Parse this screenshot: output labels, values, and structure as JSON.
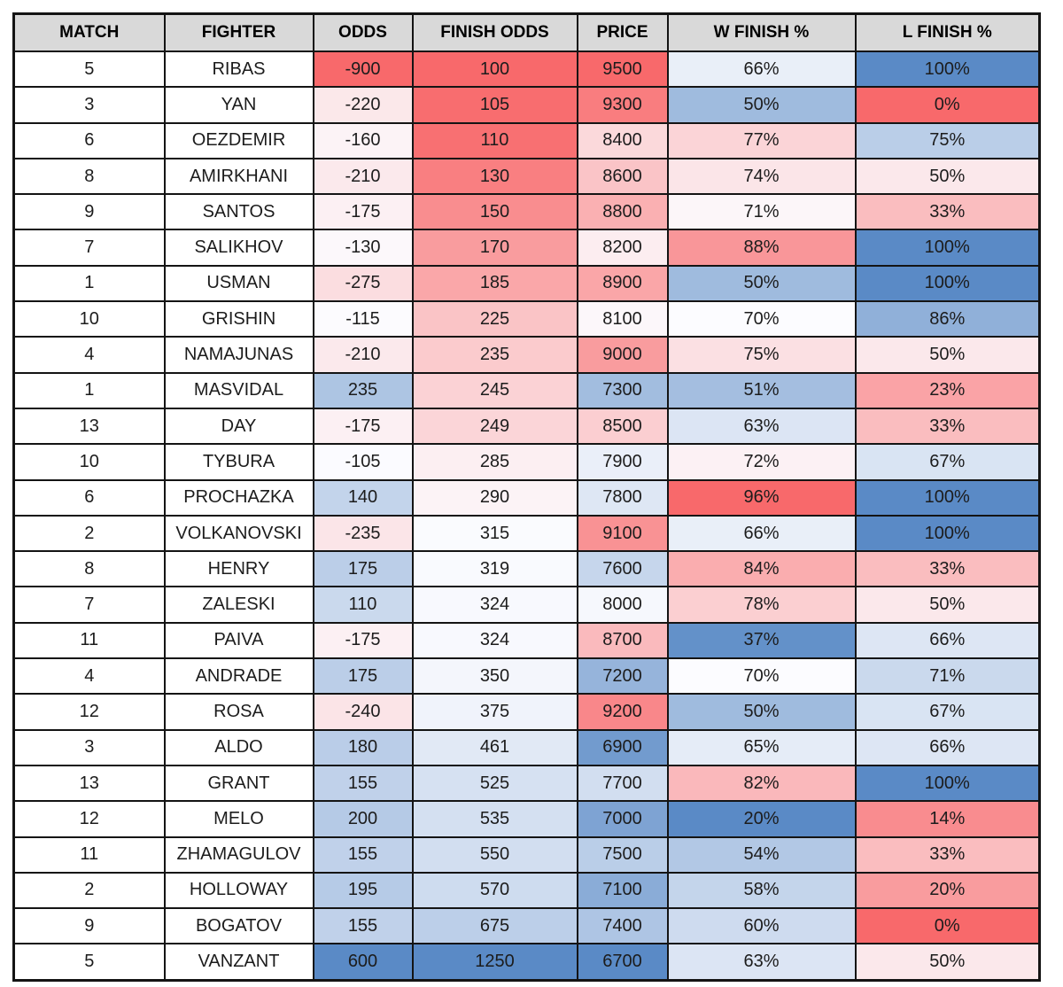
{
  "chart_data": {
    "type": "table",
    "title": "Fighter odds and finish percentage table with red-white-blue conditional formatting",
    "styles": {
      "header_bg": "#D9D9D9",
      "header_text": "#000000",
      "cell_text": "#1C1C1C",
      "border_color": "#141414",
      "page_bg": "#FFFFFF",
      "scale_red": "#F8696B",
      "scale_white": "#FCFCFF",
      "scale_blue": "#5A8AC6"
    },
    "columns": [
      {
        "key": "match",
        "label": "MATCH"
      },
      {
        "key": "fighter",
        "label": "FIGHTER"
      },
      {
        "key": "odds",
        "label": "ODDS",
        "scale": {
          "min": -900,
          "mid": -110,
          "max": 600,
          "min_color": "#F8696B",
          "mid_color": "#FCFCFF",
          "max_color": "#5A8AC6"
        }
      },
      {
        "key": "finish_odds",
        "label": "FINISH ODDS",
        "scale": {
          "min": 100,
          "mid": 303,
          "max": 1250,
          "min_color": "#F8696B",
          "mid_color": "#FCFCFF",
          "max_color": "#5A8AC6"
        }
      },
      {
        "key": "price",
        "label": "PRICE",
        "scale": {
          "min": 6700,
          "mid": 8050,
          "max": 9500,
          "min_color": "#5A8AC6",
          "mid_color": "#FCFCFF",
          "max_color": "#F8696B"
        }
      },
      {
        "key": "w_finish",
        "label": "W FINISH %",
        "suffix": "%",
        "scale": {
          "min": 35,
          "mid": 70,
          "max": 96,
          "min_color": "#5A8AC6",
          "mid_color": "#FCFCFF",
          "max_color": "#F8696B"
        }
      },
      {
        "key": "l_finish",
        "label": "L FINISH %",
        "suffix": "%",
        "scale": {
          "min": 0,
          "mid": 58,
          "max": 100,
          "min_color": "#F8696B",
          "mid_color": "#FCFCFF",
          "max_color": "#5A8AC6"
        }
      }
    ],
    "rows": [
      {
        "match": 5,
        "fighter": "RIBAS",
        "odds": -900,
        "finish_odds": 100,
        "price": 9500,
        "w_finish": 66,
        "l_finish": 100
      },
      {
        "match": 3,
        "fighter": "YAN",
        "odds": -220,
        "finish_odds": 105,
        "price": 9300,
        "w_finish": 50,
        "l_finish": 0
      },
      {
        "match": 6,
        "fighter": "OEZDEMIR",
        "odds": -160,
        "finish_odds": 110,
        "price": 8400,
        "w_finish": 77,
        "l_finish": 75
      },
      {
        "match": 8,
        "fighter": "AMIRKHANI",
        "odds": -210,
        "finish_odds": 130,
        "price": 8600,
        "w_finish": 74,
        "l_finish": 50
      },
      {
        "match": 9,
        "fighter": "SANTOS",
        "odds": -175,
        "finish_odds": 150,
        "price": 8800,
        "w_finish": 71,
        "l_finish": 33
      },
      {
        "match": 7,
        "fighter": "SALIKHOV",
        "odds": -130,
        "finish_odds": 170,
        "price": 8200,
        "w_finish": 88,
        "l_finish": 100
      },
      {
        "match": 1,
        "fighter": "USMAN",
        "odds": -275,
        "finish_odds": 185,
        "price": 8900,
        "w_finish": 50,
        "l_finish": 100
      },
      {
        "match": 10,
        "fighter": "GRISHIN",
        "odds": -115,
        "finish_odds": 225,
        "price": 8100,
        "w_finish": 70,
        "l_finish": 86
      },
      {
        "match": 4,
        "fighter": "NAMAJUNAS",
        "odds": -210,
        "finish_odds": 235,
        "price": 9000,
        "w_finish": 75,
        "l_finish": 50
      },
      {
        "match": 1,
        "fighter": "MASVIDAL",
        "odds": 235,
        "finish_odds": 245,
        "price": 7300,
        "w_finish": 51,
        "l_finish": 23
      },
      {
        "match": 13,
        "fighter": "DAY",
        "odds": -175,
        "finish_odds": 249,
        "price": 8500,
        "w_finish": 63,
        "l_finish": 33
      },
      {
        "match": 10,
        "fighter": "TYBURA",
        "odds": -105,
        "finish_odds": 285,
        "price": 7900,
        "w_finish": 72,
        "l_finish": 67
      },
      {
        "match": 6,
        "fighter": "PROCHAZKA",
        "odds": 140,
        "finish_odds": 290,
        "price": 7800,
        "w_finish": 96,
        "l_finish": 100
      },
      {
        "match": 2,
        "fighter": "VOLKANOVSKI",
        "odds": -235,
        "finish_odds": 315,
        "price": 9100,
        "w_finish": 66,
        "l_finish": 100
      },
      {
        "match": 8,
        "fighter": "HENRY",
        "odds": 175,
        "finish_odds": 319,
        "price": 7600,
        "w_finish": 84,
        "l_finish": 33
      },
      {
        "match": 7,
        "fighter": "ZALESKI",
        "odds": 110,
        "finish_odds": 324,
        "price": 8000,
        "w_finish": 78,
        "l_finish": 50
      },
      {
        "match": 11,
        "fighter": "PAIVA",
        "odds": -175,
        "finish_odds": 324,
        "price": 8700,
        "w_finish": 37,
        "l_finish": 66
      },
      {
        "match": 4,
        "fighter": "ANDRADE",
        "odds": 175,
        "finish_odds": 350,
        "price": 7200,
        "w_finish": 70,
        "l_finish": 71
      },
      {
        "match": 12,
        "fighter": "ROSA",
        "odds": -240,
        "finish_odds": 375,
        "price": 9200,
        "w_finish": 50,
        "l_finish": 67
      },
      {
        "match": 3,
        "fighter": "ALDO",
        "odds": 180,
        "finish_odds": 461,
        "price": 6900,
        "w_finish": 65,
        "l_finish": 66
      },
      {
        "match": 13,
        "fighter": "GRANT",
        "odds": 155,
        "finish_odds": 525,
        "price": 7700,
        "w_finish": 82,
        "l_finish": 100
      },
      {
        "match": 12,
        "fighter": "MELO",
        "odds": 200,
        "finish_odds": 535,
        "price": 7000,
        "w_finish": 20,
        "l_finish": 14
      },
      {
        "match": 11,
        "fighter": "ZHAMAGULOV",
        "odds": 155,
        "finish_odds": 550,
        "price": 7500,
        "w_finish": 54,
        "l_finish": 33
      },
      {
        "match": 2,
        "fighter": "HOLLOWAY",
        "odds": 195,
        "finish_odds": 570,
        "price": 7100,
        "w_finish": 58,
        "l_finish": 20
      },
      {
        "match": 9,
        "fighter": "BOGATOV",
        "odds": 155,
        "finish_odds": 675,
        "price": 7400,
        "w_finish": 60,
        "l_finish": 0
      },
      {
        "match": 5,
        "fighter": "VANZANT",
        "odds": 600,
        "finish_odds": 1250,
        "price": 6700,
        "w_finish": 63,
        "l_finish": 50
      }
    ]
  }
}
